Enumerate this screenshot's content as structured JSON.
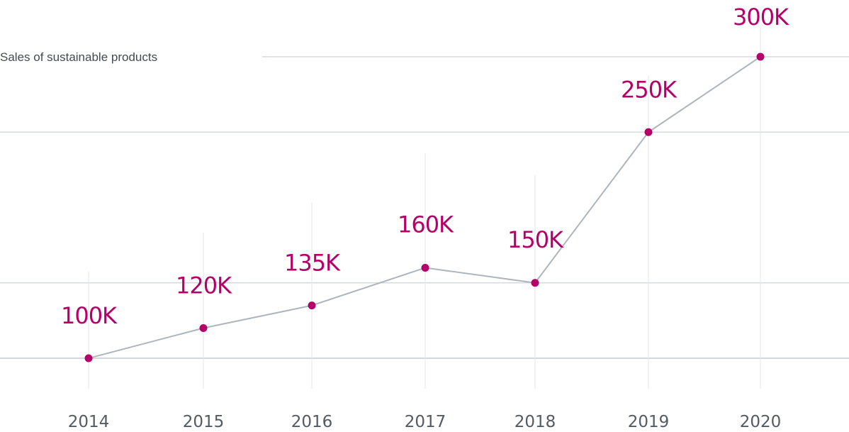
{
  "chart_data": {
    "type": "line",
    "title": "Sales of sustainable products",
    "categories": [
      "2014",
      "2015",
      "2016",
      "2017",
      "2018",
      "2019",
      "2020"
    ],
    "series": [
      {
        "values": [
          100000,
          120000,
          135000,
          160000,
          150000,
          250000,
          300000
        ],
        "labels": [
          "100K",
          "120K",
          "135K",
          "160K",
          "150K",
          "250K",
          "300K"
        ]
      }
    ],
    "ylim": [
      100000,
      300000
    ],
    "grid": true,
    "colors": {
      "point": "#b5006a",
      "line": "#aeb5bc",
      "label": "#b5006a"
    }
  }
}
